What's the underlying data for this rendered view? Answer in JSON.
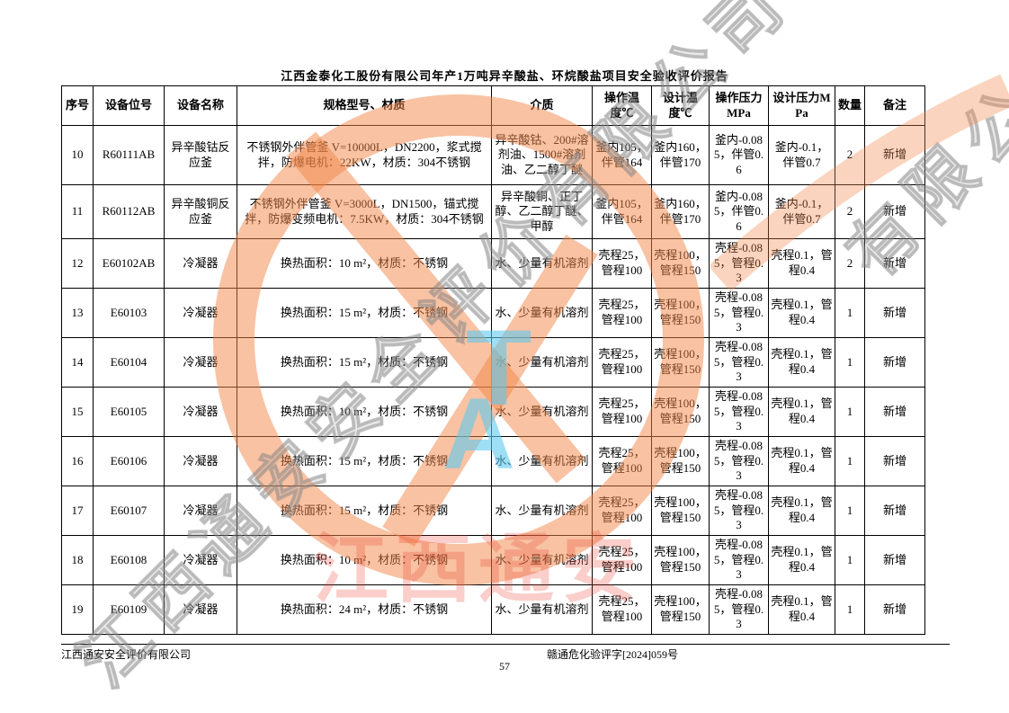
{
  "page": {
    "title": "江西金泰化工股份有限公司年产1万吨异辛酸盐、环烷酸盐项目安全验收评价报告",
    "footer_left": "江西通安安全评价有限公司",
    "footer_center": "赣通危化验评字[2024]059号",
    "page_number": "57"
  },
  "watermark": {
    "letter_t": "T",
    "letter_a": "A",
    "brand_text": "江西通安",
    "diagonal_text": "江西通安安全评价有限公司",
    "diagonal_text_corner": "有限公司",
    "orange": "#f28548",
    "cyan": "#5fc9ee",
    "red": "#e93c2d",
    "gray": "#969696"
  },
  "table": {
    "headers": [
      "序号",
      "设备位号",
      "设备名称",
      "规格型号、材质",
      "介质",
      "操作温度℃",
      "设计温度℃",
      "操作压力MPa",
      "设计压力MPa",
      "数量",
      "备注"
    ],
    "rows": [
      [
        "10",
        "R60111AB",
        "异辛酸钴反应釜",
        "不锈钢外伴管釜 V=10000L，DN2200，浆式搅拌，防爆电机：22KW，材质：304不锈钢",
        "异辛酸钴、200#溶剂油、1500#溶剂油、乙二醇丁醚",
        "釜内105，伴管164",
        "釜内160，伴管170",
        "釜内-0.085，伴管0.6",
        "釜内-0.1，伴管0.7",
        "2",
        "新增"
      ],
      [
        "11",
        "R60112AB",
        "异辛酸铜反应釜",
        "不锈钢外伴管釜 V=3000L，DN1500，锚式搅拌，防爆变频电机：7.5KW，材质：304不锈钢",
        "异辛酸铜、正丁醇、乙二醇丁醚、甲醇",
        "釜内105，伴管164",
        "釜内160，伴管170",
        "釜内-0.085，伴管0.6",
        "釜内-0.1，伴管0.7",
        "2",
        "新增"
      ],
      [
        "12",
        "E60102AB",
        "冷凝器",
        "换热面积：10 m²，材质：不锈钢",
        "水、少量有机溶剂",
        "壳程25，管程100",
        "壳程100，管程150",
        "壳程-0.085，管程0.3",
        "壳程0.1，管程0.4",
        "2",
        "新增"
      ],
      [
        "13",
        "E60103",
        "冷凝器",
        "换热面积：15 m²，材质：不锈钢",
        "水、少量有机溶剂",
        "壳程25，管程100",
        "壳程100，管程150",
        "壳程-0.085，管程0.3",
        "壳程0.1，管程0.4",
        "1",
        "新增"
      ],
      [
        "14",
        "E60104",
        "冷凝器",
        "换热面积：15 m²，材质：不锈钢",
        "水、少量有机溶剂",
        "壳程25，管程100",
        "壳程100，管程150",
        "壳程-0.085，管程0.3",
        "壳程0.1，管程0.4",
        "1",
        "新增"
      ],
      [
        "15",
        "E60105",
        "冷凝器",
        "换热面积：10 m²，材质：不锈钢",
        "水、少量有机溶剂",
        "壳程25，管程100",
        "壳程100，管程150",
        "壳程-0.085，管程0.3",
        "壳程0.1，管程0.4",
        "1",
        "新增"
      ],
      [
        "16",
        "E60106",
        "冷凝器",
        "换热面积：15 m²，材质：不锈钢",
        "水、少量有机溶剂",
        "壳程25，管程100",
        "壳程100，管程150",
        "壳程-0.085，管程0.3",
        "壳程0.1，管程0.4",
        "1",
        "新增"
      ],
      [
        "17",
        "E60107",
        "冷凝器",
        "换热面积：15 m²，材质：不锈钢",
        "水、少量有机溶剂",
        "壳程25，管程100",
        "壳程100，管程150",
        "壳程-0.085，管程0.3",
        "壳程0.1，管程0.4",
        "1",
        "新增"
      ],
      [
        "18",
        "E60108",
        "冷凝器",
        "换热面积：10 m²，材质：不锈钢",
        "水、少量有机溶剂",
        "壳程25，管程100",
        "壳程100，管程150",
        "壳程-0.085，管程0.3",
        "壳程0.1，管程0.4",
        "1",
        "新增"
      ],
      [
        "19",
        "E60109",
        "冷凝器",
        "换热面积：24 m²，材质：不锈钢",
        "水、少量有机溶剂",
        "壳程25，管程100",
        "壳程100，管程150",
        "壳程-0.085，管程0.3",
        "壳程0.1，管程0.4",
        "1",
        "新增"
      ]
    ]
  }
}
